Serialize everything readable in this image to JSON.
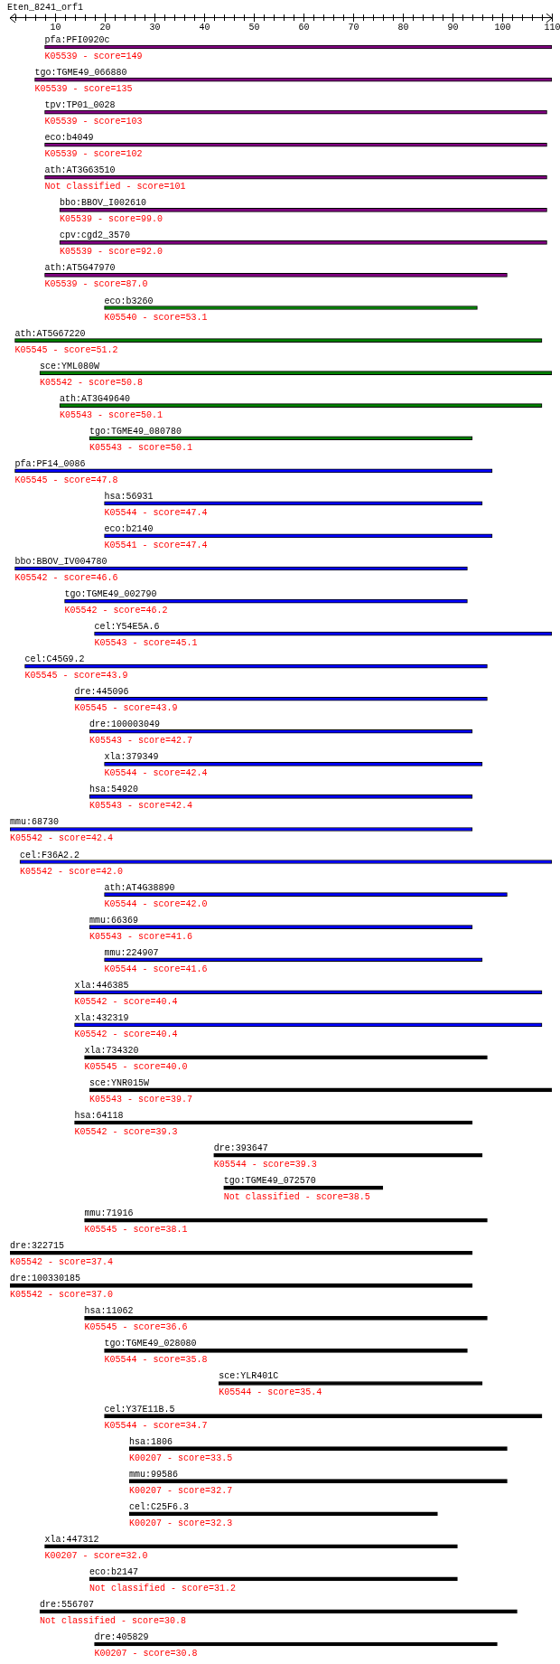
{
  "chart_data": {
    "type": "bar",
    "orientation": "horizontal",
    "title": "Eten_8241_orf1",
    "categories": [
      "pfa:PFI0920c",
      "tgo:TGME49_066880",
      "tpv:TP01_0028",
      "eco:b4049",
      "ath:AT3G63510",
      "bbo:BBOV_I002610",
      "cpv:cgd2_3570",
      "ath:AT5G47970",
      "eco:b3260",
      "ath:AT5G67220",
      "sce:YML080W",
      "ath:AT3G49640",
      "tgo:TGME49_080780",
      "pfa:PF14_0086",
      "hsa:56931",
      "eco:b2140",
      "bbo:BBOV_IV004780",
      "tgo:TGME49_002790",
      "cel:Y54E5A.6",
      "cel:C45G9.2",
      "dre:445096",
      "dre:100003049",
      "xla:379349",
      "hsa:54920",
      "mmu:68730",
      "cel:F36A2.2",
      "ath:AT4G38890",
      "mmu:66369",
      "mmu:224907",
      "xla:446385",
      "xla:432319",
      "xla:734320",
      "sce:YNR015W",
      "hsa:64118",
      "dre:393647",
      "tgo:TGME49_072570",
      "mmu:71916",
      "dre:322715",
      "dre:100330185",
      "hsa:11062",
      "tgo:TGME49_028080",
      "sce:YLR401C",
      "cel:Y37E11B.5",
      "hsa:1806",
      "mmu:99586",
      "cel:C25F6.3",
      "xla:447312",
      "eco:b2147",
      "dre:556707",
      "dre:405829"
    ],
    "base": [
      8,
      6,
      8,
      8,
      8,
      11,
      11,
      8,
      20,
      2,
      7,
      11,
      17,
      2,
      20,
      20,
      2,
      12,
      18,
      4,
      14,
      17,
      20,
      17,
      1,
      3,
      20,
      17,
      20,
      14,
      14,
      16,
      17,
      14,
      42,
      44,
      16,
      1,
      1,
      16,
      20,
      43,
      20,
      25,
      25,
      25,
      8,
      17,
      7,
      18
    ],
    "values": [
      102,
      104,
      101,
      101,
      101,
      98,
      98,
      93,
      75,
      106,
      103,
      97,
      77,
      96,
      76,
      78,
      91,
      81,
      92,
      93,
      83,
      77,
      76,
      77,
      93,
      107,
      81,
      77,
      76,
      94,
      94,
      81,
      93,
      80,
      54,
      32,
      81,
      93,
      93,
      81,
      73,
      53,
      88,
      76,
      76,
      62,
      83,
      74,
      96,
      81
    ],
    "colors": [
      "#800080",
      "#800080",
      "#800080",
      "#800080",
      "#800080",
      "#800080",
      "#800080",
      "#800080",
      "#008000",
      "#008000",
      "#008000",
      "#008000",
      "#008000",
      "#0000ff",
      "#0000ff",
      "#0000ff",
      "#0000ff",
      "#0000ff",
      "#0000ff",
      "#0000ff",
      "#0000ff",
      "#0000ff",
      "#0000ff",
      "#0000ff",
      "#0000ff",
      "#0000ff",
      "#0000ff",
      "#0000ff",
      "#0000ff",
      "#0000ff",
      "#0000ff",
      "#000000",
      "#000000",
      "#000000",
      "#000000",
      "#000000",
      "#000000",
      "#000000",
      "#000000",
      "#000000",
      "#000000",
      "#000000",
      "#000000",
      "#000000",
      "#000000",
      "#000000",
      "#000000",
      "#000000",
      "#000000",
      "#000000"
    ],
    "annotations": [
      "K05539 - score=149",
      "K05539 - score=135",
      "K05539 - score=103",
      "K05539 - score=102",
      "Not classified - score=101",
      "K05539 - score=99.0",
      "K05539 - score=92.0",
      "K05539 - score=87.0",
      "K05540 - score=53.1",
      "K05545 - score=51.2",
      "K05542 - score=50.8",
      "K05543 - score=50.1",
      "K05543 - score=50.1",
      "K05545 - score=47.8",
      "K05544 - score=47.4",
      "K05541 - score=47.4",
      "K05542 - score=46.6",
      "K05542 - score=46.2",
      "K05543 - score=45.1",
      "K05545 - score=43.9",
      "K05545 - score=43.9",
      "K05543 - score=42.7",
      "K05544 - score=42.4",
      "K05543 - score=42.4",
      "K05542 - score=42.4",
      "K05542 - score=42.0",
      "K05544 - score=42.0",
      "K05543 - score=41.6",
      "K05544 - score=41.6",
      "K05542 - score=40.4",
      "K05542 - score=40.4",
      "K05545 - score=40.0",
      "K05543 - score=39.7",
      "K05542 - score=39.3",
      "K05544 - score=39.3",
      "Not classified - score=38.5",
      "K05545 - score=38.1",
      "K05542 - score=37.4",
      "K05542 - score=37.0",
      "K05545 - score=36.6",
      "K05544 - score=35.8",
      "K05544 - score=35.4",
      "K05544 - score=34.7",
      "K00207 - score=33.5",
      "K00207 - score=32.7",
      "K00207 - score=32.3",
      "K00207 - score=32.0",
      "Not classified - score=31.2",
      "Not classified - score=30.8",
      "K00207 - score=30.8"
    ],
    "xlim": [
      1,
      110
    ],
    "xticks": [
      {
        "value": 2,
        "label": null
      },
      {
        "value": 4,
        "label": null
      },
      {
        "value": 6,
        "label": null
      },
      {
        "value": 8,
        "label": null
      },
      10,
      {
        "value": 12,
        "label": null
      },
      {
        "value": 14,
        "label": null
      },
      {
        "value": 16,
        "label": null
      },
      {
        "value": 18,
        "label": null
      },
      20,
      {
        "value": 22,
        "label": null
      },
      {
        "value": 24,
        "label": null
      },
      {
        "value": 26,
        "label": null
      },
      {
        "value": 28,
        "label": null
      },
      30,
      {
        "value": 32,
        "label": null
      },
      {
        "value": 34,
        "label": null
      },
      {
        "value": 36,
        "label": null
      },
      {
        "value": 38,
        "label": null
      },
      40,
      {
        "value": 42,
        "label": null
      },
      {
        "value": 44,
        "label": null
      },
      {
        "value": 46,
        "label": null
      },
      {
        "value": 48,
        "label": null
      },
      50,
      {
        "value": 52,
        "label": null
      },
      {
        "value": 54,
        "label": null
      },
      {
        "value": 56,
        "label": null
      },
      {
        "value": 58,
        "label": null
      },
      60,
      {
        "value": 62,
        "label": null
      },
      {
        "value": 64,
        "label": null
      },
      {
        "value": 66,
        "label": null
      },
      {
        "value": 68,
        "label": null
      },
      70,
      {
        "value": 72,
        "label": null
      },
      {
        "value": 74,
        "label": null
      },
      {
        "value": 76,
        "label": null
      },
      {
        "value": 78,
        "label": null
      },
      80,
      {
        "value": 82,
        "label": null
      },
      {
        "value": 84,
        "label": null
      },
      {
        "value": 86,
        "label": null
      },
      {
        "value": 88,
        "label": null
      },
      90,
      {
        "value": 92,
        "label": null
      },
      {
        "value": 94,
        "label": null
      },
      {
        "value": 96,
        "label": null
      },
      {
        "value": 98,
        "label": null
      },
      100,
      {
        "value": 102,
        "label": null
      },
      {
        "value": 104,
        "label": null
      },
      {
        "value": 106,
        "label": null
      },
      {
        "value": 108,
        "label": null
      },
      110
    ],
    "legend": false
  }
}
